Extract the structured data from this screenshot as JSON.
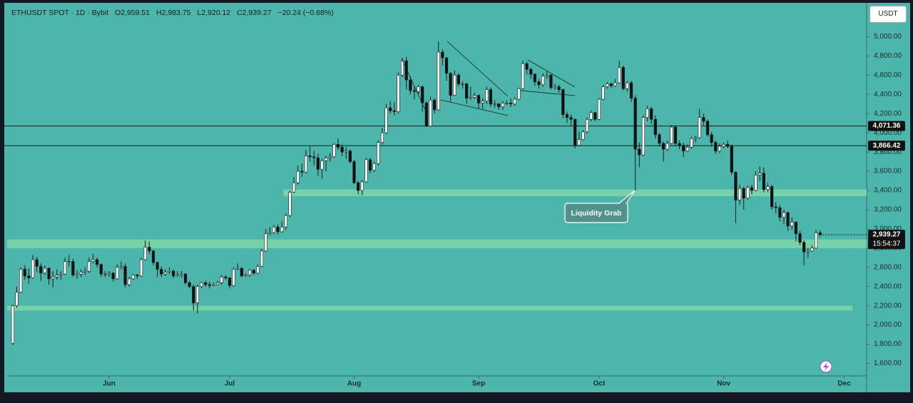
{
  "chart_data": {
    "type": "candlestick",
    "symbol": "ETHUSDT SPOT · 1D · Bybit",
    "ohlc_labels": [
      "O2,959.51",
      "H2,983.75",
      "L2,920.12",
      "C2,939.27"
    ],
    "change_label": "−20.24 (−0.68%)",
    "currency": "USDT",
    "countdown": "15:54:37",
    "annotation": "Liquidity Grab",
    "colors": {
      "background": "#4db6ac",
      "up": "#ffffff",
      "down": "#111111",
      "wick": "#1a1a1a",
      "zone": "#7fd6a8"
    },
    "open": [
      1810,
      2200,
      2340,
      2580,
      2510,
      2490,
      2680,
      2610,
      2540,
      2590,
      2480,
      2500,
      2520,
      2530,
      2660,
      2660,
      2520,
      2530,
      2550,
      2560,
      2660,
      2680,
      2630,
      2530,
      2530,
      2540,
      2480,
      2600,
      2610,
      2420,
      2480,
      2520,
      2510,
      2680,
      2810,
      2770,
      2650,
      2580,
      2530,
      2550,
      2560,
      2510,
      2520,
      2530,
      2440,
      2400,
      2230,
      2400,
      2440,
      2420,
      2410,
      2420,
      2440,
      2500,
      2490,
      2410,
      2580,
      2590,
      2510,
      2520,
      2570,
      2540,
      2610,
      2770,
      2950,
      2960,
      3020,
      2970,
      3020,
      3140,
      3380,
      3480,
      3600,
      3590,
      3760,
      3750,
      3740,
      3620,
      3710,
      3740,
      3750,
      3880,
      3850,
      3800,
      3810,
      3700,
      3480,
      3400,
      3490,
      3720,
      3610,
      3680,
      3900,
      4000,
      4260,
      4230,
      4220,
      4600,
      4750,
      4550,
      4440,
      4430,
      4480,
      4310,
      4070,
      4340,
      4240,
      4840,
      4780,
      4620,
      4390,
      4600,
      4510,
      4510,
      4360,
      4370,
      4390,
      4310,
      4330,
      4450,
      4300,
      4300,
      4270,
      4310,
      4310,
      4300,
      4350,
      4460,
      4720,
      4660,
      4610,
      4530,
      4500,
      4590,
      4600,
      4470,
      4480,
      4450,
      4190,
      4160,
      4140,
      3870,
      3930,
      4010,
      4140,
      4210,
      4140,
      4350,
      4480,
      4510,
      4490,
      4520,
      4680,
      4460,
      4520,
      4360,
      3830,
      3770,
      4160,
      4250,
      4140,
      3980,
      3890,
      3830,
      3890,
      4060,
      3890,
      3870,
      3810,
      3850,
      3940,
      3950,
      4160,
      4120,
      3980,
      3900,
      3810,
      3860,
      3880,
      3860,
      3590,
      3300,
      3420,
      3320,
      3430,
      3400,
      3560,
      3580,
      3410,
      3440,
      3230,
      3220,
      3120,
      3170,
      3030,
      3070,
      2950,
      2860,
      2760,
      2770,
      2800,
      2959.51
    ],
    "high": [
      2210,
      2400,
      2600,
      2620,
      2590,
      2730,
      2710,
      2640,
      2620,
      2600,
      2560,
      2580,
      2560,
      2700,
      2730,
      2690,
      2570,
      2580,
      2600,
      2700,
      2740,
      2700,
      2640,
      2560,
      2560,
      2550,
      2630,
      2660,
      2640,
      2500,
      2530,
      2530,
      2700,
      2880,
      2870,
      2780,
      2660,
      2610,
      2580,
      2600,
      2580,
      2560,
      2560,
      2540,
      2460,
      2420,
      2420,
      2450,
      2460,
      2450,
      2440,
      2460,
      2520,
      2520,
      2500,
      2600,
      2640,
      2600,
      2540,
      2580,
      2580,
      2630,
      2790,
      3000,
      3020,
      3040,
      3050,
      3080,
      3160,
      3400,
      3540,
      3660,
      3680,
      3820,
      3860,
      3810,
      3780,
      3730,
      3760,
      3790,
      3890,
      3940,
      3880,
      3850,
      3830,
      3720,
      3500,
      3510,
      3740,
      3740,
      3700,
      3920,
      4050,
      4300,
      4330,
      4320,
      4630,
      4780,
      4790,
      4590,
      4480,
      4500,
      4490,
      4330,
      4380,
      4360,
      4950,
      4870,
      4790,
      4630,
      4650,
      4620,
      4540,
      4520,
      4480,
      4420,
      4400,
      4360,
      4480,
      4470,
      4340,
      4310,
      4330,
      4340,
      4360,
      4370,
      4470,
      4750,
      4740,
      4680,
      4620,
      4560,
      4620,
      4640,
      4610,
      4510,
      4500,
      4460,
      4220,
      4190,
      4150,
      4010,
      4030,
      4160,
      4230,
      4220,
      4360,
      4500,
      4530,
      4520,
      4560,
      4750,
      4700,
      4540,
      4540,
      4390,
      3900,
      4180,
      4280,
      4270,
      4180,
      4000,
      3910,
      3920,
      4080,
      4080,
      3920,
      3900,
      3880,
      3960,
      3970,
      4250,
      4200,
      4140,
      4010,
      3920,
      3890,
      3900,
      3920,
      3880,
      3600,
      3460,
      3440,
      3450,
      3460,
      3600,
      3650,
      3640,
      3480,
      3460,
      3280,
      3250,
      3200,
      3180,
      3120,
      3080,
      2980,
      2880,
      2800,
      2830,
      2990,
      2983.75
    ],
    "low": [
      1790,
      2180,
      2330,
      2470,
      2430,
      2480,
      2550,
      2460,
      2520,
      2420,
      2390,
      2470,
      2470,
      2520,
      2610,
      2500,
      2480,
      2500,
      2520,
      2540,
      2640,
      2600,
      2500,
      2500,
      2500,
      2450,
      2470,
      2580,
      2390,
      2400,
      2470,
      2480,
      2500,
      2670,
      2740,
      2620,
      2500,
      2500,
      2510,
      2530,
      2490,
      2500,
      2490,
      2420,
      2380,
      2150,
      2120,
      2380,
      2400,
      2380,
      2400,
      2410,
      2420,
      2470,
      2380,
      2400,
      2570,
      2500,
      2500,
      2500,
      2520,
      2530,
      2600,
      2760,
      2930,
      2950,
      2940,
      2960,
      2990,
      3120,
      3370,
      3460,
      3540,
      3580,
      3700,
      3660,
      3550,
      3520,
      3600,
      3700,
      3740,
      3820,
      3760,
      3730,
      3680,
      3470,
      3360,
      3350,
      3480,
      3580,
      3590,
      3660,
      3880,
      3990,
      4200,
      4180,
      4200,
      4580,
      4450,
      4400,
      4350,
      4400,
      4220,
      4060,
      4060,
      4200,
      4230,
      4700,
      4540,
      4330,
      4380,
      4480,
      4460,
      4300,
      4340,
      4350,
      4250,
      4250,
      4300,
      4270,
      4260,
      4240,
      4240,
      4290,
      4270,
      4280,
      4340,
      4450,
      4610,
      4560,
      4490,
      4460,
      4480,
      4560,
      4450,
      4450,
      4420,
      4150,
      4100,
      4080,
      3840,
      3860,
      3920,
      3990,
      4120,
      4120,
      4130,
      4340,
      4460,
      4470,
      4480,
      4510,
      4440,
      4430,
      4320,
      3400,
      3640,
      3760,
      4120,
      4090,
      3940,
      3860,
      3700,
      3810,
      3880,
      3860,
      3830,
      3750,
      3800,
      3830,
      3900,
      3940,
      4080,
      3960,
      3860,
      3780,
      3790,
      3840,
      3840,
      3560,
      3060,
      3250,
      3200,
      3300,
      3360,
      3390,
      3500,
      3380,
      3380,
      3200,
      3160,
      3080,
      3050,
      2980,
      2990,
      2870,
      2830,
      2620,
      2700,
      2760,
      2790,
      2920.12
    ],
    "close": [
      2200,
      2340,
      2580,
      2510,
      2490,
      2680,
      2610,
      2540,
      2590,
      2480,
      2500,
      2520,
      2530,
      2660,
      2660,
      2520,
      2530,
      2550,
      2560,
      2660,
      2680,
      2630,
      2530,
      2530,
      2540,
      2480,
      2600,
      2610,
      2420,
      2480,
      2520,
      2510,
      2680,
      2810,
      2770,
      2650,
      2580,
      2530,
      2550,
      2560,
      2510,
      2520,
      2530,
      2440,
      2400,
      2230,
      2400,
      2440,
      2420,
      2410,
      2420,
      2440,
      2500,
      2490,
      2410,
      2580,
      2590,
      2510,
      2520,
      2570,
      2540,
      2610,
      2770,
      2950,
      2960,
      3020,
      2970,
      3020,
      3140,
      3380,
      3480,
      3600,
      3590,
      3760,
      3750,
      3740,
      3620,
      3710,
      3740,
      3750,
      3880,
      3850,
      3800,
      3810,
      3700,
      3480,
      3400,
      3490,
      3720,
      3610,
      3680,
      3900,
      4000,
      4260,
      4230,
      4220,
      4600,
      4750,
      4550,
      4440,
      4430,
      4480,
      4310,
      4070,
      4340,
      4240,
      4840,
      4780,
      4620,
      4390,
      4600,
      4510,
      4510,
      4360,
      4370,
      4390,
      4310,
      4330,
      4450,
      4300,
      4300,
      4270,
      4310,
      4310,
      4300,
      4350,
      4460,
      4720,
      4660,
      4610,
      4530,
      4500,
      4590,
      4600,
      4470,
      4480,
      4450,
      4190,
      4160,
      4140,
      3870,
      3930,
      4010,
      4140,
      4210,
      4140,
      4350,
      4480,
      4510,
      4490,
      4520,
      4680,
      4460,
      4520,
      4360,
      3830,
      3770,
      4160,
      4250,
      4140,
      3980,
      3890,
      3830,
      3890,
      4060,
      3890,
      3870,
      3810,
      3850,
      3940,
      3950,
      4160,
      4120,
      3980,
      3900,
      3810,
      3860,
      3880,
      3860,
      3590,
      3300,
      3420,
      3320,
      3430,
      3400,
      3560,
      3580,
      3410,
      3440,
      3230,
      3220,
      3120,
      3170,
      3030,
      3070,
      2950,
      2860,
      2760,
      2770,
      2800,
      2959.51,
      2939.27
    ],
    "xlim": [
      -1.4,
      212.6
    ],
    "xticks": [
      {
        "value": 24,
        "label": "Jun"
      },
      {
        "value": 54,
        "label": "Jul"
      },
      {
        "value": 85,
        "label": "Aug"
      },
      {
        "value": 116,
        "label": "Sep"
      },
      {
        "value": 146,
        "label": "Oct"
      },
      {
        "value": 177,
        "label": "Nov"
      },
      {
        "value": 207,
        "label": "Dec"
      }
    ],
    "ylim": [
      1470,
      5308
    ],
    "yticks": [
      {
        "value": 1600,
        "label": "1,600.00"
      },
      {
        "value": 1800,
        "label": "1,800.00"
      },
      {
        "value": 2000,
        "label": "2,000.00"
      },
      {
        "value": 2200,
        "label": "2,200.00"
      },
      {
        "value": 2400,
        "label": "2,400.00"
      },
      {
        "value": 2600,
        "label": "2,600.00"
      },
      {
        "value": 2800,
        "label": "2,800.00"
      },
      {
        "value": 3000,
        "label": "3,000.00"
      },
      {
        "value": 3200,
        "label": "3,200.00"
      },
      {
        "value": 3400,
        "label": "3,400.00"
      },
      {
        "value": 3600,
        "label": "3,600.00"
      },
      {
        "value": 3800,
        "label": "3,800.00"
      },
      {
        "value": 4000,
        "label": "4,000.00"
      },
      {
        "value": 4200,
        "label": "4,200.00"
      },
      {
        "value": 4400,
        "label": "4,400.00"
      },
      {
        "value": 4600,
        "label": "4,600.00"
      },
      {
        "value": 4800,
        "label": "4,800.00"
      },
      {
        "value": 5000,
        "label": "5,000.00"
      }
    ],
    "levels": [
      {
        "value": 4071.36,
        "label": "4,071.36"
      },
      {
        "value": 3866.42,
        "label": "3,866.42"
      }
    ],
    "zones": [
      {
        "low": 3340,
        "high": 3410
      },
      {
        "low": 2800,
        "high": 2890
      },
      {
        "low": 2150,
        "high": 2200
      }
    ],
    "last_price": {
      "value": 2939.27,
      "label": "2,939.27"
    }
  }
}
